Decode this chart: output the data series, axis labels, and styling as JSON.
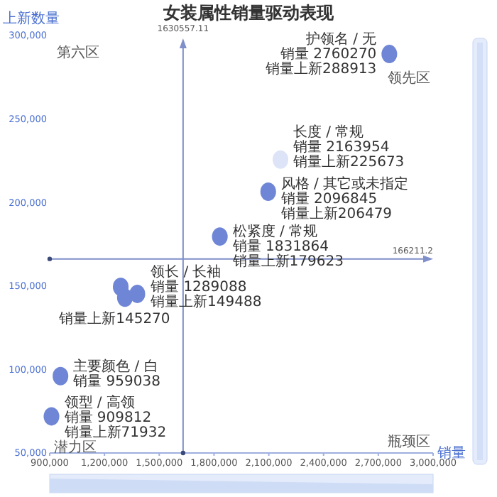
{
  "chart_data": {
    "type": "scatter",
    "title": "女装属性销量驱动表现",
    "xlabel": "销量",
    "ylabel": "上新数量",
    "x": [
      2760270,
      2163954,
      2096845,
      1831864,
      1289088,
      1312000,
      1380000,
      959038,
      909812
    ],
    "values": [
      288913,
      225673,
      206479,
      179623,
      149488,
      143000,
      145270,
      96000,
      71932
    ],
    "colors": [
      "#6f86d6",
      "#dde4f7",
      "#6f86d6",
      "#6f86d6",
      "#6f86d6",
      "#6f86d6",
      "#6f86d6",
      "#6f86d6",
      "#6f86d6"
    ],
    "xlim": [
      900000,
      3000000
    ],
    "xticks": [
      {
        "value": 900000,
        "label": "900,000"
      },
      {
        "value": 1200000,
        "label": "1,200,000"
      },
      {
        "value": 1500000,
        "label": "1,500,000"
      },
      {
        "value": 1800000,
        "label": "1,800,000"
      },
      {
        "value": 2100000,
        "label": "2,100,000"
      },
      {
        "value": 2400000,
        "label": "2,400,000"
      },
      {
        "value": 2700000,
        "label": "2,700,000"
      },
      {
        "value": 3000000,
        "label": "3,000,000"
      }
    ],
    "ylim": [
      50000,
      300000
    ],
    "yticks": [
      {
        "value": 50000,
        "label": "50,000"
      },
      {
        "value": 100000,
        "label": "100,000"
      },
      {
        "value": 150000,
        "label": "150,000"
      },
      {
        "value": 200000,
        "label": "200,000"
      },
      {
        "value": 250000,
        "label": "250,000"
      },
      {
        "value": 300000,
        "label": "300,000"
      }
    ],
    "ref_lines": [
      {
        "axis": "x",
        "value": 1630557.11,
        "label": "1630557.11",
        "color": "#7f8fc9"
      },
      {
        "axis": "y",
        "value": 166211.2,
        "label": "166211.2",
        "color": "#7f8fc9"
      }
    ],
    "annotations": [
      "第六区",
      "领先区",
      "潜力区",
      "瓶颈区",
      {
        "text": "护领名 / 无",
        "x": 2760270,
        "y": 288913
      },
      {
        "text": "销量 2760270",
        "x": 2760270,
        "y": 288913
      },
      {
        "text": "销量上新288913",
        "x": 2760270,
        "y": 288913
      },
      {
        "text": "长度 / 常规",
        "x": 2163954,
        "y": 225673
      },
      {
        "text": "销量 2163954",
        "x": 2163954,
        "y": 225673
      },
      {
        "text": "销量上新225673",
        "x": 2163954,
        "y": 225673
      },
      {
        "text": "风格 / 其它或未指定",
        "x": 2096845,
        "y": 206479
      },
      {
        "text": "销量 2096845",
        "x": 2096845,
        "y": 206479
      },
      {
        "text": "销量上新206479",
        "x": 2096845,
        "y": 206479
      },
      {
        "text": "松紧度 / 常规",
        "x": 1831864,
        "y": 179623
      },
      {
        "text": "销量 1831864",
        "x": 1831864,
        "y": 179623
      },
      {
        "text": "销量上新179623",
        "x": 1831864,
        "y": 179623
      },
      {
        "text": "领长 / 长袖",
        "x": 1289088,
        "y": 149488
      },
      {
        "text": "销量 1289088",
        "x": 1289088,
        "y": 149488
      },
      {
        "text": "销量上新149488",
        "x": 1289088,
        "y": 149488
      },
      {
        "text": "销量上新145270",
        "x": 1380000,
        "y": 145270
      },
      {
        "text": "主要颜色 / 白",
        "x": 959038,
        "y": 96000
      },
      {
        "text": "销量 959038",
        "x": 959038,
        "y": 96000
      },
      {
        "text": "领型 / 高领",
        "x": 909812,
        "y": 71932
      },
      {
        "text": "销量 909812",
        "x": 909812,
        "y": 71932
      },
      {
        "text": "销量上新71932",
        "x": 909812,
        "y": 71932
      }
    ],
    "marker": "circle"
  }
}
